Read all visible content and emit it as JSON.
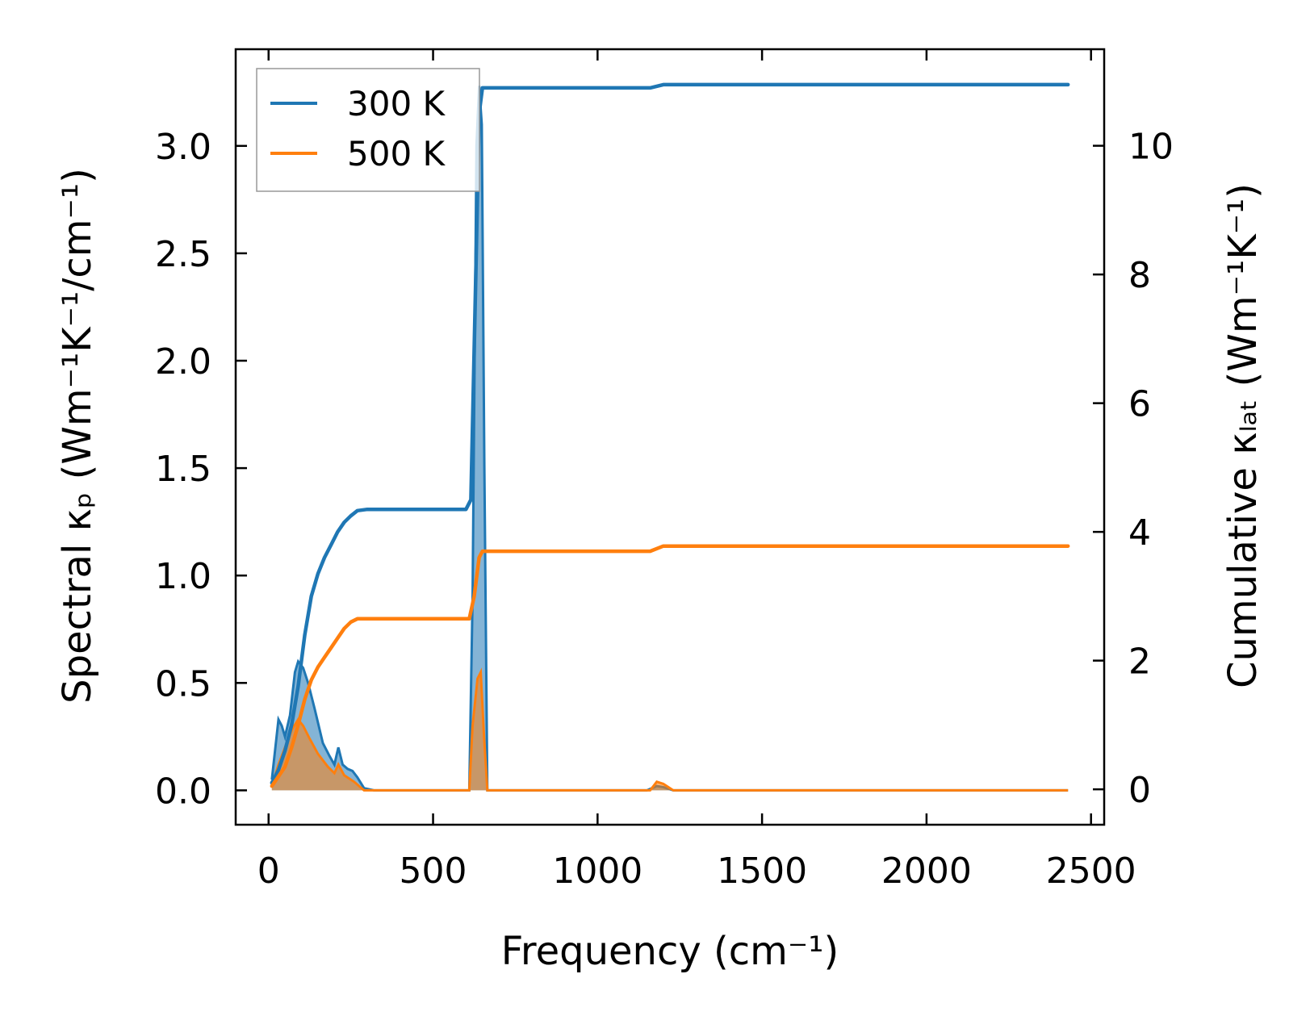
{
  "chart_data": {
    "type": "line",
    "xlabel": "Frequency (cm⁻¹)",
    "ylabel_left": "Spectral κₚ (Wm⁻¹K⁻¹/cm⁻¹)",
    "ylabel_right": "Cumulative κₗₐₜ (Wm⁻¹K⁻¹)",
    "xlim": [
      -100,
      2540
    ],
    "ylim_left": [
      -0.16,
      3.45
    ],
    "ylim_right": [
      -0.55,
      11.5
    ],
    "x_ticks": [
      0,
      500,
      1000,
      1500,
      2000,
      2500
    ],
    "y_ticks_left": [
      0.0,
      0.5,
      1.0,
      1.5,
      2.0,
      2.5,
      3.0
    ],
    "y_ticks_right": [
      0,
      2,
      4,
      6,
      8,
      10
    ],
    "legend_position": "top-left",
    "series": [
      {
        "name": "300 K",
        "color": "#1f77b4",
        "spectral": [
          [
            10,
            0.05
          ],
          [
            30,
            0.33
          ],
          [
            40,
            0.3
          ],
          [
            50,
            0.25
          ],
          [
            65,
            0.35
          ],
          [
            80,
            0.55
          ],
          [
            90,
            0.6
          ],
          [
            105,
            0.57
          ],
          [
            120,
            0.5
          ],
          [
            140,
            0.38
          ],
          [
            165,
            0.22
          ],
          [
            185,
            0.16
          ],
          [
            200,
            0.12
          ],
          [
            212,
            0.2
          ],
          [
            225,
            0.12
          ],
          [
            240,
            0.1
          ],
          [
            255,
            0.09
          ],
          [
            270,
            0.06
          ],
          [
            290,
            0.01
          ],
          [
            320,
            0.0
          ],
          [
            600,
            0.0
          ],
          [
            610,
            0.0
          ],
          [
            620,
            0.9
          ],
          [
            632,
            3.0
          ],
          [
            640,
            3.28
          ],
          [
            648,
            3.1
          ],
          [
            656,
            1.5
          ],
          [
            665,
            0.0
          ],
          [
            1150,
            0.0
          ],
          [
            1180,
            0.02
          ],
          [
            1200,
            0.015
          ],
          [
            1230,
            0.0
          ],
          [
            2430,
            0.0
          ]
        ],
        "cumulative": [
          [
            10,
            0.1
          ],
          [
            30,
            0.3
          ],
          [
            50,
            0.6
          ],
          [
            70,
            1.0
          ],
          [
            90,
            1.6
          ],
          [
            110,
            2.4
          ],
          [
            130,
            3.0
          ],
          [
            150,
            3.35
          ],
          [
            170,
            3.6
          ],
          [
            190,
            3.8
          ],
          [
            210,
            4.0
          ],
          [
            230,
            4.15
          ],
          [
            250,
            4.25
          ],
          [
            270,
            4.33
          ],
          [
            300,
            4.35
          ],
          [
            600,
            4.35
          ],
          [
            615,
            4.5
          ],
          [
            630,
            8.0
          ],
          [
            640,
            10.5
          ],
          [
            650,
            10.9
          ],
          [
            1160,
            10.9
          ],
          [
            1200,
            10.95
          ],
          [
            2430,
            10.95
          ]
        ]
      },
      {
        "name": "500 K",
        "color": "#ff7f0e",
        "spectral": [
          [
            10,
            0.02
          ],
          [
            30,
            0.12
          ],
          [
            50,
            0.2
          ],
          [
            70,
            0.28
          ],
          [
            90,
            0.33
          ],
          [
            105,
            0.3
          ],
          [
            125,
            0.24
          ],
          [
            150,
            0.17
          ],
          [
            180,
            0.11
          ],
          [
            200,
            0.08
          ],
          [
            212,
            0.12
          ],
          [
            230,
            0.07
          ],
          [
            260,
            0.04
          ],
          [
            290,
            0.0
          ],
          [
            610,
            0.0
          ],
          [
            620,
            0.3
          ],
          [
            635,
            0.52
          ],
          [
            645,
            0.55
          ],
          [
            655,
            0.25
          ],
          [
            665,
            0.0
          ],
          [
            1160,
            0.0
          ],
          [
            1180,
            0.04
          ],
          [
            1200,
            0.03
          ],
          [
            1230,
            0.0
          ],
          [
            2430,
            0.0
          ]
        ],
        "cumulative": [
          [
            10,
            0.05
          ],
          [
            30,
            0.2
          ],
          [
            50,
            0.35
          ],
          [
            70,
            0.65
          ],
          [
            90,
            1.0
          ],
          [
            110,
            1.4
          ],
          [
            130,
            1.7
          ],
          [
            150,
            1.9
          ],
          [
            170,
            2.05
          ],
          [
            190,
            2.2
          ],
          [
            210,
            2.35
          ],
          [
            230,
            2.5
          ],
          [
            250,
            2.6
          ],
          [
            270,
            2.65
          ],
          [
            300,
            2.65
          ],
          [
            610,
            2.65
          ],
          [
            625,
            3.0
          ],
          [
            640,
            3.6
          ],
          [
            650,
            3.7
          ],
          [
            1160,
            3.7
          ],
          [
            1200,
            3.78
          ],
          [
            2430,
            3.78
          ]
        ]
      }
    ]
  }
}
